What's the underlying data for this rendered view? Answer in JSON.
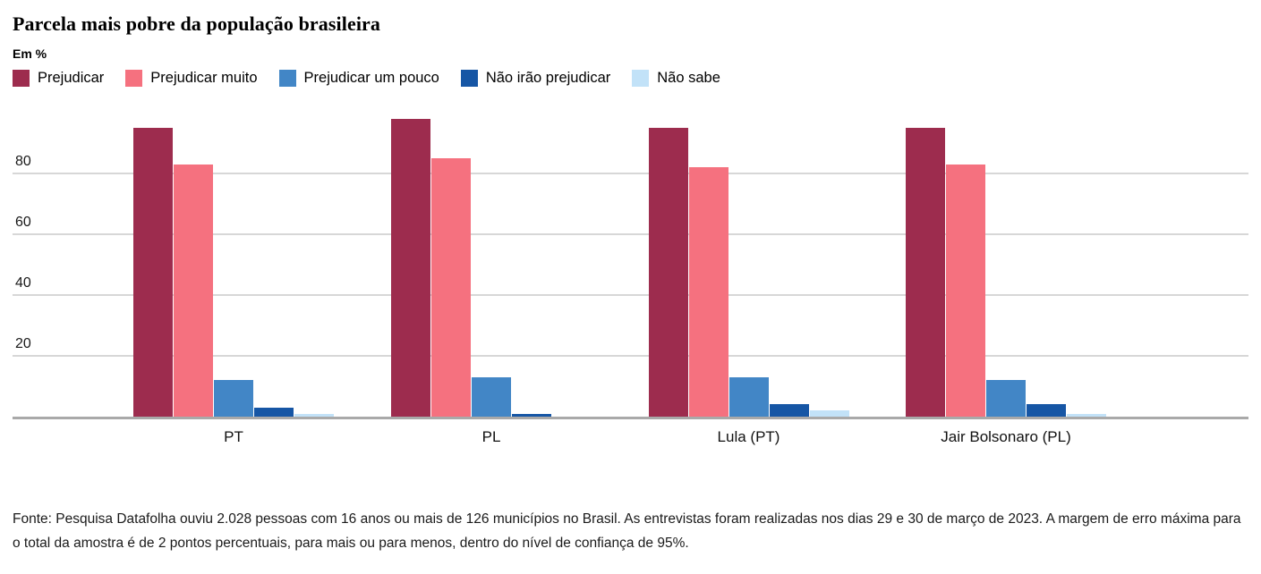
{
  "chart_data": {
    "type": "bar",
    "title": "Parcela mais pobre da população brasileira",
    "unit_label": "Em %",
    "categories": [
      "PT",
      "PL",
      "Lula (PT)",
      "Jair Bolsonaro (PL)"
    ],
    "series": [
      {
        "name": "Prejudicar",
        "color": "#9D2C4E",
        "values": [
          95,
          98,
          95,
          95
        ]
      },
      {
        "name": "Prejudicar muito",
        "color": "#F5717F",
        "values": [
          83,
          85,
          82,
          83
        ]
      },
      {
        "name": "Prejudicar um pouco",
        "color": "#4286C6",
        "values": [
          12,
          13,
          13,
          12
        ]
      },
      {
        "name": "Não irão prejudicar",
        "color": "#1656A5",
        "values": [
          3,
          1,
          4,
          4
        ]
      },
      {
        "name": "Não sabe",
        "color": "#C2E2F8",
        "values": [
          1,
          0,
          2,
          1
        ]
      }
    ],
    "y_axis": {
      "ticks": [
        20,
        40,
        60,
        80
      ],
      "max": 101,
      "gridlines": true
    },
    "legend_position": "top",
    "colors": {
      "gridline": "#d7d7d7",
      "axis_line": "#a9a9a9",
      "background": "#ffffff"
    },
    "source_note": "Fonte: Pesquisa Datafolha ouviu 2.028 pessoas com 16 anos ou mais de 126 municípios no Brasil. As entrevistas foram realizadas nos dias 29 e 30 de março de 2023. A margem de erro máxima para o total da amostra é de 2 pontos percentuais, para mais ou para menos, dentro do nível de confiança de 95%."
  }
}
